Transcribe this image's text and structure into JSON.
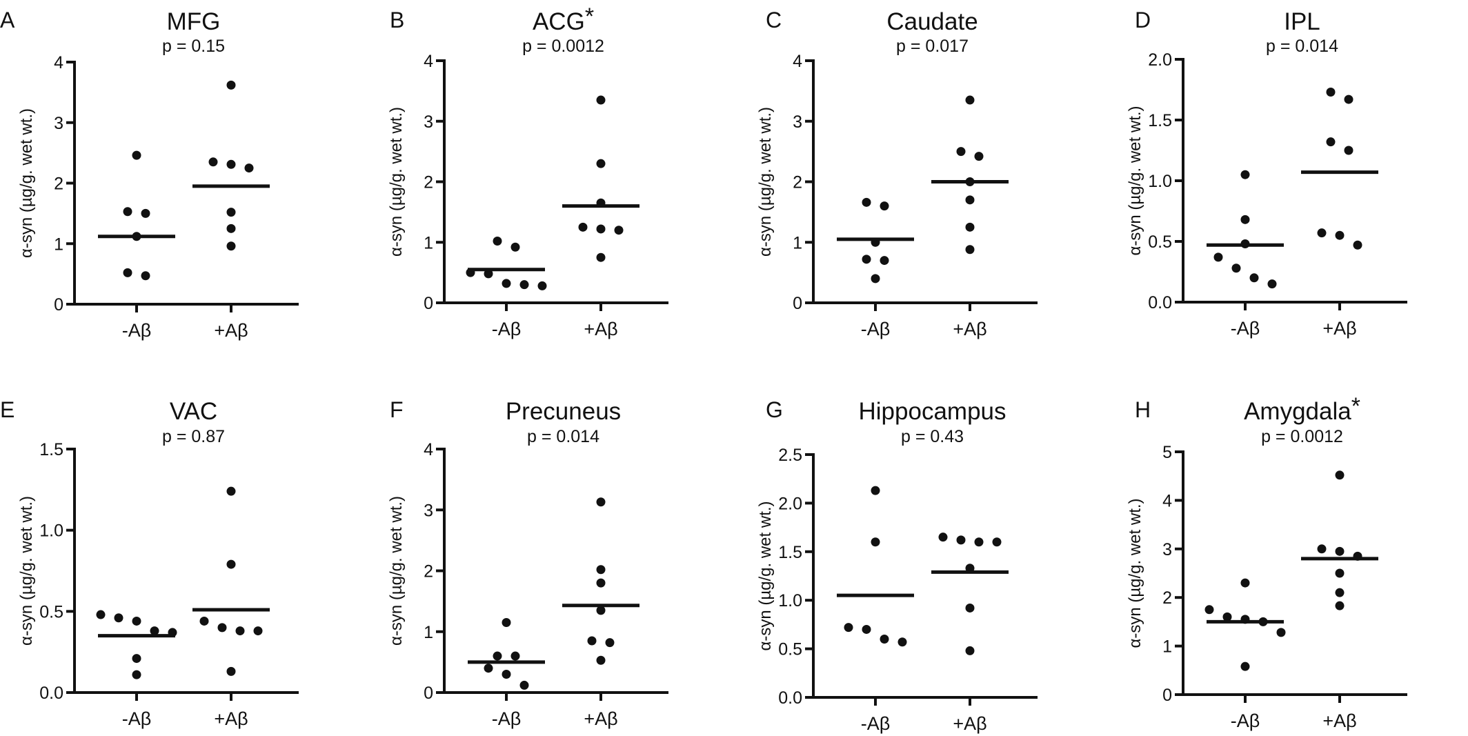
{
  "y_axis_label": "α-syn (µg/g. wet wt.)",
  "chart_data": [
    {
      "panel": "A",
      "type": "scatter",
      "title": "MFG",
      "asterisk": false,
      "pvalue": "p = 0.15",
      "ylabel": "α-syn (µg/g. wet wt.)",
      "categories": [
        "-Aβ",
        "+Aβ"
      ],
      "ylim": [
        0,
        4
      ],
      "yticks": [
        "0",
        "1",
        "2",
        "3",
        "4"
      ],
      "series": [
        {
          "category": "-Aβ",
          "values": [
            2.46,
            1.53,
            1.5,
            1.12,
            0.52,
            0.47
          ],
          "mean": 1.12
        },
        {
          "category": "+Aβ",
          "values": [
            3.62,
            2.35,
            2.31,
            2.25,
            1.52,
            1.25,
            0.96
          ],
          "mean": 1.95
        }
      ]
    },
    {
      "panel": "B",
      "type": "scatter",
      "title": "ACG",
      "asterisk": true,
      "pvalue": "p = 0.0012",
      "ylabel": "α-syn (µg/g. wet wt.)",
      "categories": [
        "-Aβ",
        "+Aβ"
      ],
      "ylim": [
        0,
        4
      ],
      "yticks": [
        "0",
        "1",
        "2",
        "3",
        "4"
      ],
      "series": [
        {
          "category": "-Aβ",
          "values": [
            1.02,
            0.92,
            0.5,
            0.48,
            0.3,
            0.28,
            0.32
          ],
          "mean": 0.55
        },
        {
          "category": "+Aβ",
          "values": [
            3.35,
            2.3,
            1.65,
            1.25,
            1.22,
            1.2,
            0.75
          ],
          "mean": 1.6
        }
      ]
    },
    {
      "panel": "C",
      "type": "scatter",
      "title": "Caudate",
      "asterisk": false,
      "pvalue": "p = 0.017",
      "ylabel": "α-syn (µg/g. wet wt.)",
      "categories": [
        "-Aβ",
        "+Aβ"
      ],
      "ylim": [
        0,
        4
      ],
      "yticks": [
        "0",
        "1",
        "2",
        "3",
        "4"
      ],
      "series": [
        {
          "category": "-Aβ",
          "values": [
            1.66,
            1.6,
            1.0,
            0.72,
            0.7,
            0.4
          ],
          "mean": 1.05
        },
        {
          "category": "+Aβ",
          "values": [
            3.35,
            2.5,
            2.42,
            2.0,
            1.7,
            1.25,
            0.88
          ],
          "mean": 2.0
        }
      ]
    },
    {
      "panel": "D",
      "type": "scatter",
      "title": "IPL",
      "asterisk": false,
      "pvalue": "p = 0.014",
      "ylabel": "α-syn (µg/g. wet wt.)",
      "categories": [
        "-Aβ",
        "+Aβ"
      ],
      "ylim": [
        0,
        2.0
      ],
      "yticks": [
        "0.0",
        "0.5",
        "1.0",
        "1.5",
        "2.0"
      ],
      "series": [
        {
          "category": "-Aβ",
          "values": [
            1.05,
            0.68,
            0.48,
            0.37,
            0.28,
            0.2,
            0.15
          ],
          "mean": 0.47
        },
        {
          "category": "+Aβ",
          "values": [
            1.73,
            1.67,
            1.32,
            1.25,
            0.57,
            0.55,
            0.47
          ],
          "mean": 1.07
        }
      ]
    },
    {
      "panel": "E",
      "type": "scatter",
      "title": "VAC",
      "asterisk": false,
      "pvalue": "p = 0.87",
      "ylabel": "α-syn (µg/g. wet wt.)",
      "categories": [
        "-Aβ",
        "+Aβ"
      ],
      "ylim": [
        0,
        1.5
      ],
      "yticks": [
        "0.0",
        "0.5",
        "1.0",
        "1.5"
      ],
      "series": [
        {
          "category": "-Aβ",
          "values": [
            0.48,
            0.46,
            0.44,
            0.38,
            0.37,
            0.21,
            0.11
          ],
          "mean": 0.35
        },
        {
          "category": "+Aβ",
          "values": [
            1.24,
            0.79,
            0.44,
            0.4,
            0.38,
            0.38,
            0.13
          ],
          "mean": 0.51
        }
      ]
    },
    {
      "panel": "F",
      "type": "scatter",
      "title": "Precuneus",
      "asterisk": false,
      "pvalue": "p = 0.014",
      "ylabel": "α-syn (µg/g. wet wt.)",
      "categories": [
        "-Aβ",
        "+Aβ"
      ],
      "ylim": [
        0,
        4
      ],
      "yticks": [
        "0",
        "1",
        "2",
        "3",
        "4"
      ],
      "series": [
        {
          "category": "-Aβ",
          "values": [
            1.15,
            0.6,
            0.6,
            0.4,
            0.3,
            0.12
          ],
          "mean": 0.5
        },
        {
          "category": "+Aβ",
          "values": [
            3.13,
            2.02,
            1.8,
            1.35,
            0.85,
            0.82,
            0.53
          ],
          "mean": 1.43
        }
      ]
    },
    {
      "panel": "G",
      "type": "scatter",
      "title": "Hippocampus",
      "asterisk": false,
      "pvalue": "p = 0.43",
      "ylabel": "α-syn (µg/g. wet wt.)",
      "categories": [
        "-Aβ",
        "+Aβ"
      ],
      "ylim": [
        0,
        2.5
      ],
      "yticks": [
        "0.0",
        "0.5",
        "1.0",
        "1.5",
        "2.0",
        "2.5"
      ],
      "series": [
        {
          "category": "-Aβ",
          "values": [
            2.13,
            1.6,
            0.72,
            0.7,
            0.6,
            0.57
          ],
          "mean": 1.05
        },
        {
          "category": "+Aβ",
          "values": [
            1.65,
            1.62,
            1.6,
            1.6,
            1.33,
            0.92,
            0.48
          ],
          "mean": 1.29
        }
      ]
    },
    {
      "panel": "H",
      "type": "scatter",
      "title": "Amygdala",
      "asterisk": true,
      "pvalue": "p = 0.0012",
      "ylabel": "α-syn (µg/g. wet wt.)",
      "categories": [
        "-Aβ",
        "+Aβ"
      ],
      "ylim": [
        0,
        5
      ],
      "yticks": [
        "0",
        "1",
        "2",
        "3",
        "4",
        "5"
      ],
      "series": [
        {
          "category": "-Aβ",
          "values": [
            2.3,
            1.75,
            1.6,
            1.55,
            1.5,
            1.28,
            0.58
          ],
          "mean": 1.5
        },
        {
          "category": "+Aβ",
          "values": [
            4.52,
            3.0,
            2.95,
            2.85,
            2.5,
            2.1,
            1.83
          ],
          "mean": 2.8
        }
      ]
    }
  ]
}
